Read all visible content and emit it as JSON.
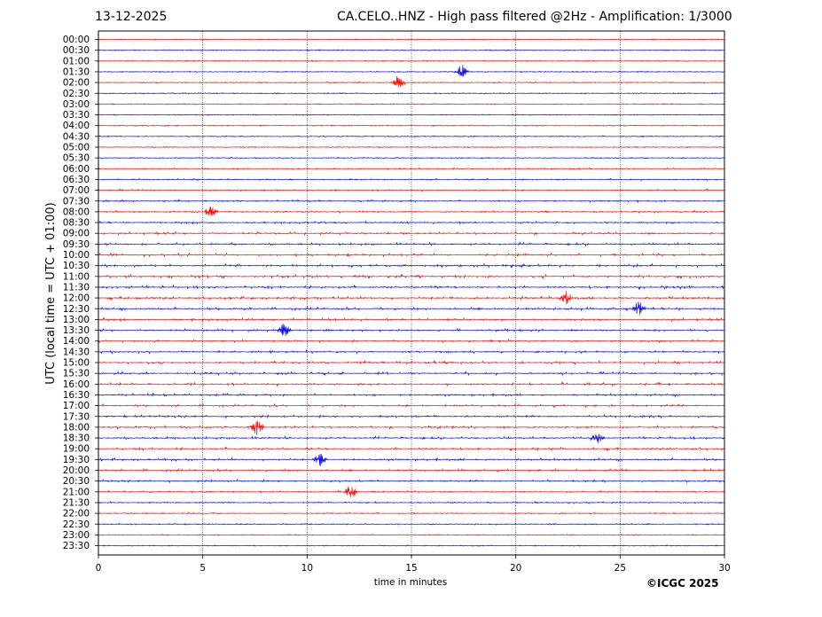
{
  "header": {
    "date": "13-12-2025",
    "title": "CA.CELO..HNZ - High pass filtered @2Hz - Amplification: 1/3000"
  },
  "footer": {
    "copyright": "©ICGC 2025"
  },
  "colors": {
    "trace_a": "#ff0000",
    "trace_b": "#0000ff",
    "grid": "#000000",
    "axes": "#000000"
  },
  "chart_data": {
    "type": "line",
    "chart_kind": "helicorder",
    "xlabel": "time in minutes",
    "ylabel": "UTC (local time = UTC + 01:00)",
    "xlim": [
      0,
      30
    ],
    "xticks": [
      0,
      5,
      10,
      15,
      20,
      25,
      30
    ],
    "vertical_grid": [
      5,
      10,
      15,
      20,
      25
    ],
    "row_labels": [
      "00:00",
      "00:30",
      "01:00",
      "01:30",
      "02:00",
      "02:30",
      "03:00",
      "03:30",
      "04:00",
      "04:30",
      "05:00",
      "05:30",
      "06:00",
      "06:30",
      "07:00",
      "07:30",
      "08:00",
      "08:30",
      "09:00",
      "09:30",
      "10:00",
      "10:30",
      "11:00",
      "11:30",
      "12:00",
      "12:30",
      "13:00",
      "13:30",
      "14:00",
      "14:30",
      "15:00",
      "15:30",
      "16:00",
      "16:30",
      "17:00",
      "17:30",
      "18:00",
      "18:30",
      "19:00",
      "19:30",
      "20:00",
      "20:30",
      "21:00",
      "21:30",
      "22:00",
      "22:30",
      "23:00",
      "23:30"
    ],
    "trace_colors_cycle": [
      "#ff0000",
      "#0000ff"
    ],
    "activity_level": [
      0.05,
      0.1,
      0.12,
      0.08,
      0.1,
      0.1,
      0.06,
      0.06,
      0.08,
      0.1,
      0.14,
      0.12,
      0.22,
      0.24,
      0.3,
      0.34,
      0.36,
      0.4,
      0.46,
      0.5,
      0.52,
      0.54,
      0.56,
      0.58,
      0.58,
      0.56,
      0.52,
      0.48,
      0.44,
      0.46,
      0.48,
      0.5,
      0.5,
      0.48,
      0.46,
      0.48,
      0.48,
      0.5,
      0.5,
      0.5,
      0.46,
      0.4,
      0.3,
      0.24,
      0.18,
      0.16,
      0.12,
      0.06
    ],
    "notable_events": [
      {
        "row": "13:30",
        "minute": 8.9
      },
      {
        "row": "12:30",
        "minute": 25.9
      },
      {
        "row": "19:30",
        "minute": 10.6
      },
      {
        "row": "18:00",
        "minute": 7.6
      },
      {
        "row": "12:00",
        "minute": 22.4
      },
      {
        "row": "08:00",
        "minute": 5.4
      },
      {
        "row": "18:30",
        "minute": 23.9
      },
      {
        "row": "01:30",
        "minute": 17.4
      },
      {
        "row": "02:00",
        "minute": 14.4
      },
      {
        "row": "21:00",
        "minute": 12.1
      }
    ]
  }
}
